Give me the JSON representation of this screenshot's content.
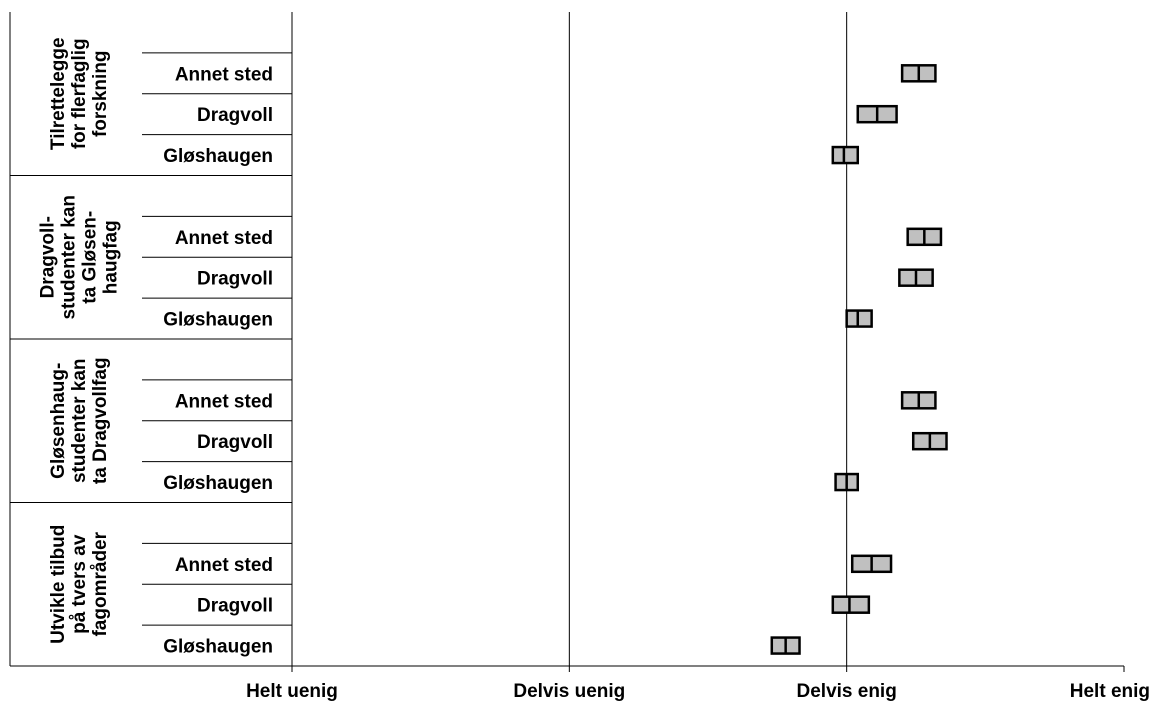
{
  "chart_data": {
    "type": "range",
    "x_axis": {
      "tick_labels": [
        "Helt uenig",
        "Delvis uenig",
        "Delvis enig",
        "Helt enig"
      ],
      "range": [
        1,
        4
      ],
      "gridlines": true
    },
    "groups": [
      {
        "name": "Tilrettelegge for flerfaglig forskning",
        "lines": [
          "Tilrettelegge",
          "for flerfaglig",
          "forskning"
        ],
        "rows": [
          {
            "label": "Annet sted",
            "low": 3.2,
            "mean": 3.26,
            "high": 3.32
          },
          {
            "label": "Dragvoll",
            "low": 3.04,
            "mean": 3.11,
            "high": 3.18
          },
          {
            "label": "Gløshaugen",
            "low": 2.95,
            "mean": 2.99,
            "high": 3.04
          }
        ]
      },
      {
        "name": "Dragvoll-studenter kan ta Gløsen-haugfag",
        "lines": [
          "Dragvoll-",
          "studenter kan",
          "ta Gløsen-",
          "haugfag"
        ],
        "rows": [
          {
            "label": "Annet sted",
            "low": 3.22,
            "mean": 3.28,
            "high": 3.34
          },
          {
            "label": "Dragvoll",
            "low": 3.19,
            "mean": 3.25,
            "high": 3.31
          },
          {
            "label": "Gløshaugen",
            "low": 3.0,
            "mean": 3.04,
            "high": 3.09
          }
        ]
      },
      {
        "name": "Gløsenhaug-studenter kan ta Dragvollfag",
        "lines": [
          "Gløsenhaug-",
          "studenter kan",
          "ta Dragvollfag"
        ],
        "rows": [
          {
            "label": "Annet sted",
            "low": 3.2,
            "mean": 3.26,
            "high": 3.32
          },
          {
            "label": "Dragvoll",
            "low": 3.24,
            "mean": 3.3,
            "high": 3.36
          },
          {
            "label": "Gløshaugen",
            "low": 2.96,
            "mean": 3.0,
            "high": 3.04
          }
        ]
      },
      {
        "name": "Utvikle tilbud på tvers av fagområder",
        "lines": [
          "Utvikle tilbud",
          "på tvers av",
          "fagområder"
        ],
        "rows": [
          {
            "label": "Annet sted",
            "low": 3.02,
            "mean": 3.09,
            "high": 3.16
          },
          {
            "label": "Dragvoll",
            "low": 2.95,
            "mean": 3.01,
            "high": 3.08
          },
          {
            "label": "Gløshaugen",
            "low": 2.73,
            "mean": 2.78,
            "high": 2.83
          }
        ]
      }
    ],
    "box_fill": "#c0c0c0",
    "box_stroke": "#000000"
  }
}
